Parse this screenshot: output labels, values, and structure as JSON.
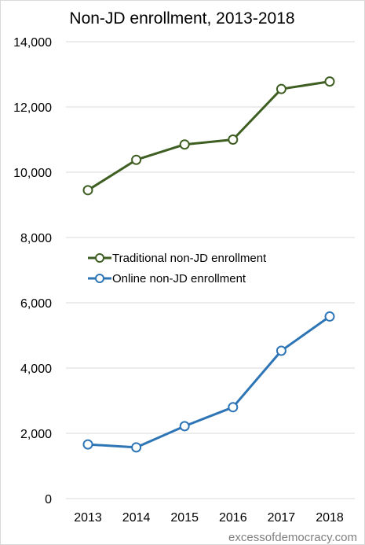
{
  "chart_data": {
    "type": "line",
    "title": "Non-JD enrollment, 2013-2018",
    "xlabel": "",
    "ylabel": "",
    "categories": [
      "2013",
      "2014",
      "2015",
      "2016",
      "2017",
      "2018"
    ],
    "ylim": [
      0,
      14000
    ],
    "y_ticks": [
      0,
      2000,
      4000,
      6000,
      8000,
      10000,
      12000,
      14000
    ],
    "y_tick_labels": [
      "0",
      "2,000",
      "4,000",
      "6,000",
      "8,000",
      "10,000",
      "12,000",
      "14,000"
    ],
    "grid": "horizontal",
    "legend_position": "middle-left",
    "series": [
      {
        "name": "Traditional non-JD enrollment",
        "color": "#3e5e22",
        "values": [
          9450,
          10380,
          10850,
          11000,
          12550,
          12780
        ]
      },
      {
        "name": "Online non-JD enrollment",
        "color": "#2e75b6",
        "values": [
          1660,
          1570,
          2220,
          2800,
          4530,
          5580
        ]
      }
    ]
  },
  "credit": "excessofdemocracy.com",
  "colors": {
    "grid": "#d9d9d9",
    "marker_fill": "#ffffff"
  }
}
